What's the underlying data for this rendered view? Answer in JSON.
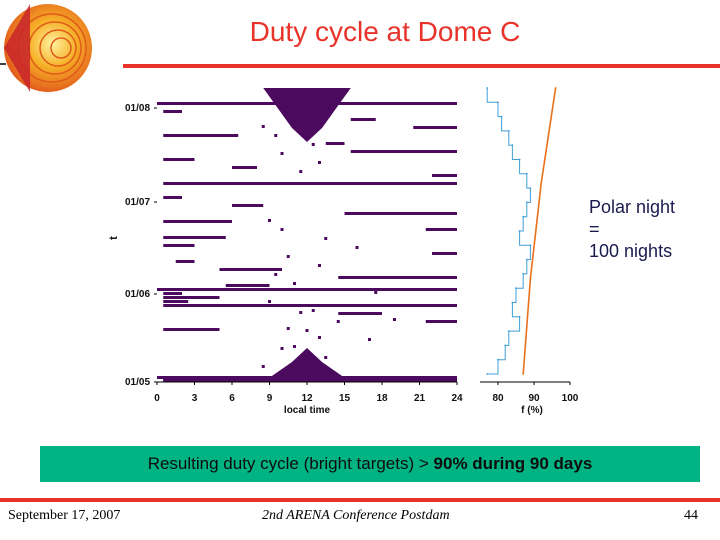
{
  "slide": {
    "title": "Duty cycle at Dome C",
    "note_lines": [
      "Polar night",
      "=",
      "100 nights"
    ],
    "banner_prefix": "Resulting duty cycle (bright targets) > ",
    "banner_bold": "90% during 90 days",
    "footer": {
      "date": "September 17, 2007",
      "conference": "2nd ARENA Conference Postdam",
      "page": "44"
    },
    "colors": {
      "accent": "#e8332a",
      "banner": "#00b383",
      "mark": "#4b0a5e",
      "line_blue": "#3e9fd8",
      "line_orange": "#e8701c"
    },
    "logo": "globe-cutaway-icon"
  },
  "chart_data": [
    {
      "type": "heatmap",
      "title": "",
      "xlabel": "local time",
      "ylabel": "t",
      "xlim": [
        0,
        24
      ],
      "xticks": [
        "0",
        "3",
        "6",
        "9",
        "12",
        "15",
        "18",
        "21",
        "24"
      ],
      "yticks": [
        "01/08",
        "01/07",
        "01/06",
        "01/05"
      ],
      "legend": "none",
      "grid": false,
      "daylight_regions": [
        {
          "month_start": "01/08",
          "half_width_hours_at_edge": 3.5,
          "depth_days": 28
        },
        {
          "month_start": "01/05",
          "half_width_hours_at_edge": 3.5,
          "depth_days": 28
        }
      ],
      "observation_gaps": [
        {
          "date": "01/08",
          "start": 0,
          "end": 24
        },
        {
          "date": "01/06",
          "start": 0,
          "end": 24
        },
        {
          "date": "01/05",
          "start": 0,
          "end": 24
        },
        {
          "date": "01/08",
          "start": 0.5,
          "end": 2.0
        },
        {
          "date": "01/08",
          "start": 15.5,
          "end": 17.5
        },
        {
          "date": "01/08",
          "start": 20.5,
          "end": 24
        },
        {
          "date": "01/08",
          "start": 0.5,
          "end": 6.5
        },
        {
          "date": "01/08",
          "start": 13.5,
          "end": 15.0
        },
        {
          "date": "01/08",
          "start": 15.5,
          "end": 24
        },
        {
          "date": "01/08",
          "start": 0.5,
          "end": 3.0
        },
        {
          "date": "01/08",
          "start": 6.0,
          "end": 8.0
        },
        {
          "date": "01/08",
          "start": 22.0,
          "end": 24
        },
        {
          "date": "01/08",
          "start": 0.5,
          "end": 24
        },
        {
          "date": "01/07",
          "start": 0.5,
          "end": 2.0
        },
        {
          "date": "01/07",
          "start": 6.0,
          "end": 8.5
        },
        {
          "date": "01/07",
          "start": 15.0,
          "end": 24
        },
        {
          "date": "01/07",
          "start": 0.5,
          "end": 6.0
        },
        {
          "date": "01/07",
          "start": 21.5,
          "end": 24
        },
        {
          "date": "01/07",
          "start": 0.5,
          "end": 5.5
        },
        {
          "date": "01/07",
          "start": 0.5,
          "end": 3.0
        },
        {
          "date": "01/07",
          "start": 22.0,
          "end": 24
        },
        {
          "date": "01/07",
          "start": 1.5,
          "end": 3.0
        },
        {
          "date": "01/07",
          "start": 5.0,
          "end": 10.0
        },
        {
          "date": "01/07",
          "start": 14.5,
          "end": 24
        },
        {
          "date": "01/07",
          "start": 5.5,
          "end": 9.0
        },
        {
          "date": "01/07",
          "start": 0.5,
          "end": 2.0
        },
        {
          "date": "01/07",
          "start": 0.5,
          "end": 2.5
        },
        {
          "date": "01/06",
          "start": 0.5,
          "end": 5.0
        },
        {
          "date": "01/06",
          "start": 0.5,
          "end": 24
        },
        {
          "date": "01/06",
          "start": 14.5,
          "end": 18.0
        },
        {
          "date": "01/06",
          "start": 21.5,
          "end": 24
        },
        {
          "date": "01/06",
          "start": 0.5,
          "end": 5.0
        },
        {
          "date": "01/05",
          "start": 15.0,
          "end": 24
        },
        {
          "date": "01/05",
          "start": 0.5,
          "end": 1.5
        },
        {
          "date": "01/05",
          "start": 21.0,
          "end": 24
        },
        {
          "date": "01/05",
          "start": 0.5,
          "end": 24
        }
      ],
      "isolated_points": [
        {
          "date": "01/08",
          "time": 8.5
        },
        {
          "date": "01/08",
          "time": 9.5
        },
        {
          "date": "01/08",
          "time": 12.5
        },
        {
          "date": "01/08",
          "time": 10.0
        },
        {
          "date": "01/08",
          "time": 13.0
        },
        {
          "date": "01/08",
          "time": 11.5
        },
        {
          "date": "01/07",
          "time": 9.0
        },
        {
          "date": "01/07",
          "time": 10.0
        },
        {
          "date": "01/07",
          "time": 13.5
        },
        {
          "date": "01/07",
          "time": 16.0
        },
        {
          "date": "01/07",
          "time": 10.5
        },
        {
          "date": "01/07",
          "time": 13.0
        },
        {
          "date": "01/07",
          "time": 9.5
        },
        {
          "date": "01/07",
          "time": 11.0
        },
        {
          "date": "01/07",
          "time": 17.5
        },
        {
          "date": "01/07",
          "time": 9.0
        },
        {
          "date": "01/07",
          "time": 12.5
        },
        {
          "date": "01/07",
          "time": 19.0
        },
        {
          "date": "01/07",
          "time": 10.5
        },
        {
          "date": "01/07",
          "time": 13.0
        },
        {
          "date": "01/07",
          "time": 11.0
        },
        {
          "date": "01/06",
          "time": 11.5
        },
        {
          "date": "01/06",
          "time": 14.5
        },
        {
          "date": "01/06",
          "time": 12.0
        },
        {
          "date": "01/06",
          "time": 17.0
        },
        {
          "date": "01/06",
          "time": 10.0
        },
        {
          "date": "01/06",
          "time": 13.5
        },
        {
          "date": "01/06",
          "time": 8.5
        },
        {
          "date": "01/06",
          "time": 14.0
        },
        {
          "date": "01/06",
          "time": 9.0
        },
        {
          "date": "01/06",
          "time": 15.5
        },
        {
          "date": "01/06",
          "time": 9.0
        },
        {
          "date": "01/06",
          "time": 19.5
        },
        {
          "date": "01/06",
          "time": 6.0
        },
        {
          "date": "01/06",
          "time": 16.0
        },
        {
          "date": "01/06",
          "time": 17.5
        }
      ]
    },
    {
      "type": "line",
      "title": "",
      "xlabel": "f (%)",
      "ylabel": "",
      "xlim": [
        75,
        100
      ],
      "xticks": [
        "80",
        "90",
        "100"
      ],
      "legend": "none",
      "grid": false,
      "series": [
        {
          "color": "#3e9fd8",
          "y": [
            "01/08",
            "01/08",
            "01/08",
            "01/08",
            "01/08",
            "01/08",
            "01/08",
            "01/07",
            "01/07",
            "01/07",
            "01/07",
            "01/07",
            "01/07",
            "01/07",
            "01/06",
            "01/06",
            "01/06",
            "01/06",
            "01/06",
            "01/06",
            "01/05"
          ],
          "x": [
            77,
            80,
            81,
            83,
            84,
            86,
            88,
            89,
            88,
            87,
            86,
            89,
            88,
            87,
            85,
            84,
            86,
            83,
            82,
            80,
            77
          ]
        },
        {
          "color": "#e8701c",
          "y": [
            "01/08",
            "01/07",
            "01/06",
            "01/05"
          ],
          "x": [
            96,
            92,
            89,
            87
          ]
        }
      ]
    }
  ]
}
